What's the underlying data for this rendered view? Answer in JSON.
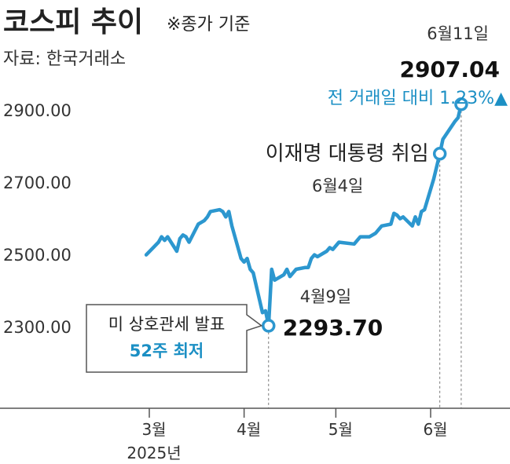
{
  "header": {
    "title": "코스피 추이",
    "note": "※종가 기준",
    "source": "자료: 한국거래소"
  },
  "colors": {
    "line": "#2c97cf",
    "accent_blue": "#1b8fc4",
    "axis": "#555555",
    "guide": "#777777"
  },
  "annotations": {
    "low_box_line1": "미 상호관세 발표",
    "low_box_line2": "52주 최저",
    "low_date": "4월9일",
    "low_value": "2293.70",
    "event_label": "이재명 대통령 취임",
    "event_date": "6월4일",
    "end_date": "6월11일",
    "end_value": "2907.04",
    "end_change": "전 거래일 대비 1.23%▲"
  },
  "chart_data": {
    "type": "line",
    "title": "코스피 추이",
    "subtitle": "※종가 기준",
    "xlabel": "",
    "ylabel": "",
    "x_ticks": [
      "3월",
      "4월",
      "5월",
      "6월"
    ],
    "x_year_label": "2025년",
    "y_ticks": [
      "2300.00",
      "2500.00",
      "2700.00",
      "2900.00"
    ],
    "y_tick_values": [
      2300,
      2500,
      2700,
      2900
    ],
    "ylim": [
      2100,
      2950
    ],
    "grid": false,
    "series": [
      {
        "points": [
          [
            "2025-02-28",
            2490
          ],
          [
            "2025-03-04",
            2525
          ],
          [
            "2025-03-05",
            2540
          ],
          [
            "2025-03-06",
            2530
          ],
          [
            "2025-03-07",
            2540
          ],
          [
            "2025-03-10",
            2500
          ],
          [
            "2025-03-11",
            2535
          ],
          [
            "2025-03-12",
            2545
          ],
          [
            "2025-03-13",
            2540
          ],
          [
            "2025-03-14",
            2525
          ],
          [
            "2025-03-17",
            2575
          ],
          [
            "2025-03-18",
            2580
          ],
          [
            "2025-03-19",
            2585
          ],
          [
            "2025-03-20",
            2595
          ],
          [
            "2025-03-21",
            2610
          ],
          [
            "2025-03-24",
            2615
          ],
          [
            "2025-03-25",
            2610
          ],
          [
            "2025-03-26",
            2595
          ],
          [
            "2025-03-27",
            2610
          ],
          [
            "2025-03-28",
            2570
          ],
          [
            "2025-03-31",
            2480
          ],
          [
            "2025-04-01",
            2470
          ],
          [
            "2025-04-02",
            2480
          ],
          [
            "2025-04-03",
            2450
          ],
          [
            "2025-04-04",
            2440
          ],
          [
            "2025-04-07",
            2330
          ],
          [
            "2025-04-08",
            2335
          ],
          [
            "2025-04-09",
            2293.7
          ],
          [
            "2025-04-10",
            2450
          ],
          [
            "2025-04-11",
            2420
          ],
          [
            "2025-04-14",
            2435
          ],
          [
            "2025-04-15",
            2450
          ],
          [
            "2025-04-16",
            2430
          ],
          [
            "2025-04-17",
            2440
          ],
          [
            "2025-04-18",
            2450
          ],
          [
            "2025-04-21",
            2455
          ],
          [
            "2025-04-22",
            2455
          ],
          [
            "2025-04-23",
            2480
          ],
          [
            "2025-04-24",
            2490
          ],
          [
            "2025-04-25",
            2485
          ],
          [
            "2025-04-28",
            2500
          ],
          [
            "2025-04-29",
            2510
          ],
          [
            "2025-04-30",
            2505
          ],
          [
            "2025-05-02",
            2525
          ],
          [
            "2025-05-07",
            2520
          ],
          [
            "2025-05-08",
            2530
          ],
          [
            "2025-05-09",
            2540
          ],
          [
            "2025-05-12",
            2540
          ],
          [
            "2025-05-13",
            2545
          ],
          [
            "2025-05-14",
            2550
          ],
          [
            "2025-05-15",
            2560
          ],
          [
            "2025-05-16",
            2570
          ],
          [
            "2025-05-19",
            2575
          ],
          [
            "2025-05-20",
            2605
          ],
          [
            "2025-05-21",
            2600
          ],
          [
            "2025-05-22",
            2590
          ],
          [
            "2025-05-23",
            2595
          ],
          [
            "2025-05-26",
            2570
          ],
          [
            "2025-05-27",
            2595
          ],
          [
            "2025-05-28",
            2575
          ],
          [
            "2025-05-29",
            2610
          ],
          [
            "2025-05-30",
            2615
          ],
          [
            "2025-06-02",
            2700
          ],
          [
            "2025-06-04",
            2770
          ],
          [
            "2025-06-05",
            2810
          ],
          [
            "2025-06-09",
            2860
          ],
          [
            "2025-06-10",
            2870
          ],
          [
            "2025-06-11",
            2907.04
          ]
        ]
      }
    ],
    "highlights": [
      {
        "x": "2025-04-09",
        "y": 2293.7
      },
      {
        "x": "2025-06-04",
        "y": 2770
      },
      {
        "x": "2025-06-11",
        "y": 2907.04
      }
    ]
  }
}
